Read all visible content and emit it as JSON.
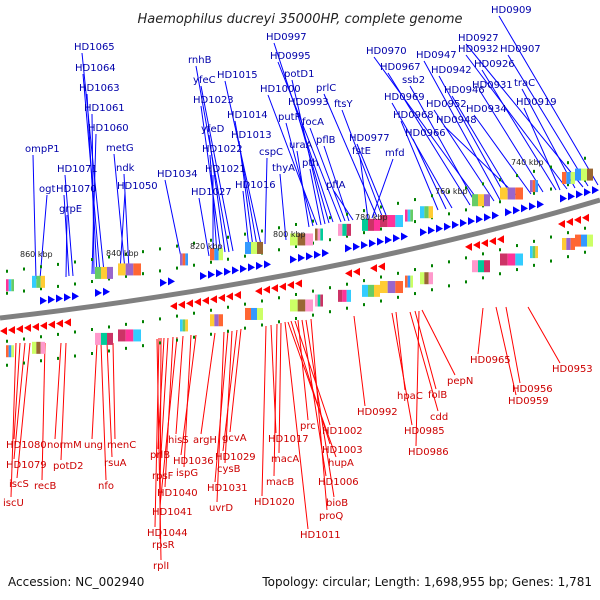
{
  "title": "Haemophilus ducreyi 35000HP, complete genome",
  "footer": {
    "accession": "Accession: NC_002940",
    "topology": "Topology: circular; Length: 1,698,955 bp; Genes: 1,781"
  },
  "colors": {
    "forward_strand": "#0000ff",
    "reverse_strand": "#ff0000",
    "backbone": "#808080",
    "tick": "#008000"
  },
  "kbp_ticks": [
    "860 kbp",
    "840 kbp",
    "820 kbp",
    "800 kbp",
    "780 kbp",
    "760 kbp",
    "740 kbp"
  ],
  "forward_labels": [
    "HD0909",
    "HD0927",
    "HD0932",
    "HD0907",
    "HD0926",
    "HD0931",
    "traC",
    "HD0919",
    "HD0934",
    "HD0970",
    "HD0947",
    "HD0967",
    "ssb2",
    "HD0942",
    "HD0946",
    "HD0969",
    "HD0952",
    "HD0968",
    "HD0948",
    "HD0966",
    "mfd",
    "HD0997",
    "HD0995",
    "potD1",
    "HD1000",
    "prlC",
    "HD0993",
    "putP",
    "focA",
    "ftsY",
    "pflB",
    "uraA",
    "HD0977",
    "pth",
    "pflA",
    "fstE",
    "rnhB",
    "yfeC",
    "HD1015",
    "HD1023",
    "HD1014",
    "yfeD",
    "HD1013",
    "HD1022",
    "cspC",
    "thyA",
    "HD1021",
    "HD1016",
    "HD1027",
    "HD1034",
    "HD1065",
    "HD1064",
    "HD1063",
    "HD1061",
    "HD1060",
    "metG",
    "ndk",
    "HD1050",
    "ompP1",
    "HD1071",
    "ogt",
    "HD1070",
    "grpE"
  ],
  "reverse_labels": [
    "HD0953",
    "HD0965",
    "HD0956",
    "HD0959",
    "pepN",
    "folB",
    "cdd",
    "hpaC",
    "HD0985",
    "HD0986",
    "HD0992",
    "prc",
    "HD1002",
    "HD1003",
    "hupA",
    "HD1006",
    "bioB",
    "proQ",
    "HD1011",
    "HD1017",
    "macA",
    "macB",
    "HD1020",
    "gcvA",
    "HD1029",
    "cysB",
    "HD1031",
    "uvrD",
    "argH",
    "hisS",
    "HD1036",
    "ispG",
    "prlB",
    "rpsF",
    "HD1040",
    "HD1041",
    "HD1044",
    "rpsR",
    "rplI",
    "HD1080",
    "HD1079",
    "iscS",
    "iscU",
    "normM",
    "potD2",
    "recB",
    "ung",
    "nfo",
    "menC",
    "rsuA"
  ]
}
